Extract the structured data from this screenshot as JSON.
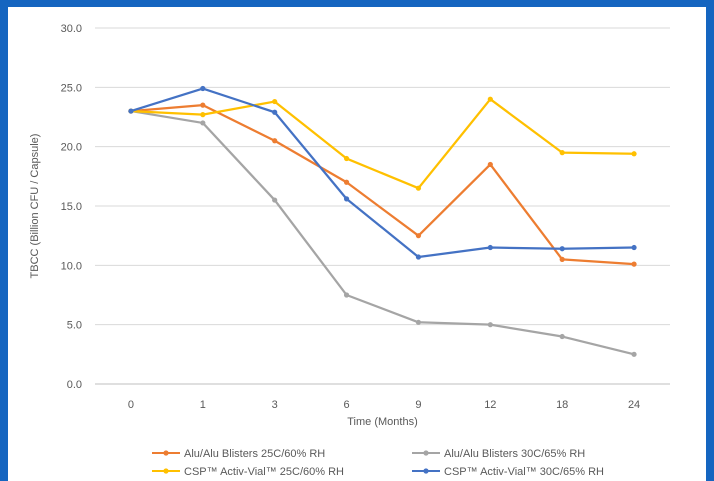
{
  "chart_data": {
    "type": "line",
    "title": "",
    "xlabel": "Time (Months)",
    "ylabel": "TBCC (Billion CFU / Capsule)",
    "x": [
      "0",
      "1",
      "3",
      "6",
      "9",
      "12",
      "18",
      "24"
    ],
    "ylim": [
      0,
      30
    ],
    "yticks": [
      "0.0",
      "5.0",
      "10.0",
      "15.0",
      "20.0",
      "25.0",
      "30.0"
    ],
    "grid": true,
    "legend_position": "bottom",
    "series": [
      {
        "name": "Alu/Alu Blisters 25C/60% RH",
        "color": "#ed7d31",
        "values": [
          23.0,
          23.5,
          20.5,
          17.0,
          12.5,
          18.5,
          10.5,
          10.1
        ]
      },
      {
        "name": "Alu/Alu Blisters 30C/65% RH",
        "color": "#a5a5a5",
        "values": [
          23.0,
          22.0,
          15.5,
          7.5,
          5.2,
          5.0,
          4.0,
          2.5
        ]
      },
      {
        "name": "CSP™ Activ-Vial™ 25C/60% RH",
        "color": "#ffc000",
        "values": [
          23.0,
          22.7,
          23.8,
          19.0,
          16.5,
          24.0,
          19.5,
          19.4
        ]
      },
      {
        "name": "CSP™ Activ-Vial™ 30C/65% RH",
        "color": "#4472c4",
        "values": [
          23.0,
          24.9,
          22.9,
          15.6,
          10.7,
          11.5,
          11.4,
          11.5
        ]
      }
    ]
  }
}
